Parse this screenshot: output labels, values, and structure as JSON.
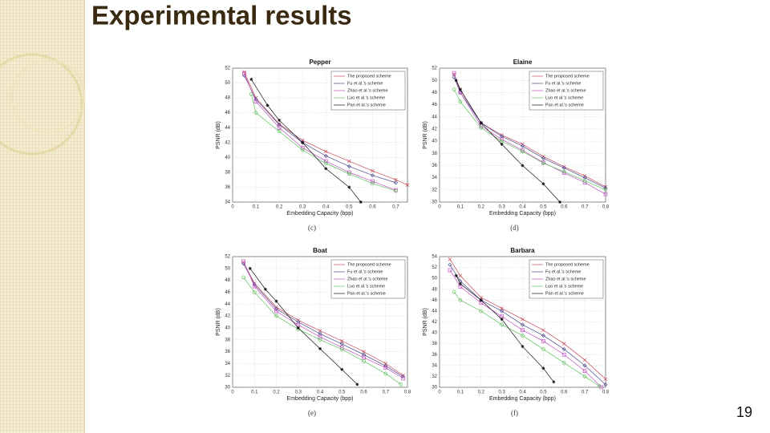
{
  "slide_title": "Experimental results",
  "page_number": "19",
  "chart_data": [
    {
      "type": "line",
      "title": "Pepper",
      "caption": "(c)",
      "xlabel": "Embedding Capacity (bpp)",
      "ylabel": "PSNR (dB)",
      "xlim": [
        0,
        0.75
      ],
      "xticks": [
        0,
        0.1,
        0.2,
        0.3,
        0.4,
        0.5,
        0.6,
        0.7
      ],
      "ylim": [
        34,
        52
      ],
      "yticks": [
        34,
        36,
        38,
        40,
        42,
        44,
        46,
        48,
        50,
        52
      ],
      "grid": true,
      "legend": "upper right",
      "series": [
        {
          "name": "The proposed scheme",
          "color": "#c84a5a",
          "marker": "x",
          "x": [
            0.05,
            0.1,
            0.2,
            0.3,
            0.4,
            0.5,
            0.6,
            0.7,
            0.75
          ],
          "values": [
            51.5,
            48,
            44.5,
            42.3,
            40.8,
            39.5,
            38.2,
            37,
            36.3
          ]
        },
        {
          "name": "Fu et al.'s scheme",
          "color": "#4a4a8c",
          "marker": "diamond",
          "x": [
            0.05,
            0.1,
            0.2,
            0.3,
            0.4,
            0.5,
            0.6,
            0.7
          ],
          "values": [
            51,
            47.8,
            44.4,
            42,
            40.2,
            38.8,
            37.6,
            36.6
          ]
        },
        {
          "name": "Zhao et al.'s scheme",
          "color": "#c050c0",
          "marker": "square",
          "x": [
            0.05,
            0.1,
            0.2,
            0.3,
            0.4,
            0.5,
            0.6,
            0.7
          ],
          "values": [
            51.3,
            47.5,
            44,
            41.3,
            39.5,
            38,
            36.8,
            35.6
          ]
        },
        {
          "name": "Luo et al.'s scheme",
          "color": "#60c060",
          "marker": "circle",
          "x": [
            0.08,
            0.1,
            0.2,
            0.3,
            0.4,
            0.5,
            0.6,
            0.7
          ],
          "values": [
            48.5,
            46,
            43.5,
            41,
            39.2,
            37.8,
            36.5,
            35.5
          ]
        },
        {
          "name": "Pan et al.'s scheme",
          "color": "#111111",
          "marker": "star",
          "x": [
            0.08,
            0.15,
            0.2,
            0.3,
            0.4,
            0.5,
            0.55
          ],
          "values": [
            50.5,
            47,
            45,
            42,
            38.5,
            36,
            34
          ]
        }
      ]
    },
    {
      "type": "line",
      "title": "Elaine",
      "caption": "(d)",
      "xlabel": "Embedding Capacity (bpp)",
      "ylabel": "PSNR (dB)",
      "xlim": [
        0,
        0.8
      ],
      "xticks": [
        0,
        0.1,
        0.2,
        0.3,
        0.4,
        0.5,
        0.6,
        0.7,
        0.8
      ],
      "ylim": [
        30,
        52
      ],
      "yticks": [
        30,
        32,
        34,
        36,
        38,
        40,
        42,
        44,
        46,
        48,
        50,
        52
      ],
      "grid": true,
      "legend": "upper right",
      "series": [
        {
          "name": "The proposed scheme",
          "color": "#c84a5a",
          "marker": "x",
          "x": [
            0.07,
            0.1,
            0.2,
            0.3,
            0.4,
            0.5,
            0.6,
            0.7,
            0.8
          ],
          "values": [
            51,
            48.5,
            43,
            41,
            39.5,
            37.5,
            35.8,
            34.3,
            32.5
          ]
        },
        {
          "name": "Fu et al.'s scheme",
          "color": "#4a4a8c",
          "marker": "diamond",
          "x": [
            0.07,
            0.1,
            0.2,
            0.3,
            0.4,
            0.5,
            0.6,
            0.7,
            0.8
          ],
          "values": [
            50.5,
            48,
            43,
            40.8,
            39.2,
            37.2,
            35.6,
            34,
            32.3
          ]
        },
        {
          "name": "Zhao et al.'s scheme",
          "color": "#c050c0",
          "marker": "square",
          "x": [
            0.07,
            0.1,
            0.2,
            0.3,
            0.4,
            0.5,
            0.6,
            0.7,
            0.8
          ],
          "values": [
            51.2,
            48,
            42.5,
            40.3,
            38.5,
            36.5,
            34.8,
            33.2,
            31.3
          ]
        },
        {
          "name": "Luo et al.'s scheme",
          "color": "#60c060",
          "marker": "circle",
          "x": [
            0.07,
            0.1,
            0.2,
            0.3,
            0.4,
            0.5,
            0.6,
            0.7,
            0.8
          ],
          "values": [
            48.5,
            46.5,
            42.2,
            40,
            38.3,
            36.4,
            35,
            33.5,
            32
          ]
        },
        {
          "name": "Pan et al.'s scheme",
          "color": "#111111",
          "marker": "star",
          "x": [
            0.08,
            0.1,
            0.2,
            0.3,
            0.4,
            0.5,
            0.58
          ],
          "values": [
            50,
            48.5,
            43,
            39.5,
            36,
            33,
            30
          ]
        }
      ]
    },
    {
      "type": "line",
      "title": "Boat",
      "caption": "(e)",
      "xlabel": "Embedding Capacity (bpp)",
      "ylabel": "PSNR (dB)",
      "xlim": [
        0,
        0.8
      ],
      "xticks": [
        0,
        0.1,
        0.2,
        0.3,
        0.4,
        0.5,
        0.6,
        0.7,
        0.8
      ],
      "ylim": [
        30,
        52
      ],
      "yticks": [
        30,
        32,
        34,
        36,
        38,
        40,
        42,
        44,
        46,
        48,
        50,
        52
      ],
      "grid": true,
      "legend": "upper right",
      "series": [
        {
          "name": "The proposed scheme",
          "color": "#c84a5a",
          "marker": "x",
          "x": [
            0.05,
            0.1,
            0.2,
            0.3,
            0.4,
            0.5,
            0.6,
            0.7,
            0.78
          ],
          "values": [
            51,
            47.5,
            43.5,
            41.3,
            39.5,
            37.8,
            36,
            34,
            32
          ]
        },
        {
          "name": "Fu et al.'s scheme",
          "color": "#4a4a8c",
          "marker": "diamond",
          "x": [
            0.05,
            0.1,
            0.2,
            0.3,
            0.4,
            0.5,
            0.6,
            0.7,
            0.78
          ],
          "values": [
            50.8,
            47.3,
            43.2,
            41,
            39,
            37.3,
            35.5,
            33.6,
            31.8
          ]
        },
        {
          "name": "Zhao et al.'s scheme",
          "color": "#c050c0",
          "marker": "square",
          "x": [
            0.05,
            0.1,
            0.2,
            0.3,
            0.4,
            0.5,
            0.6,
            0.7,
            0.78
          ],
          "values": [
            51.2,
            47,
            42.8,
            40.5,
            38.5,
            36.7,
            35,
            33.3,
            31.5
          ]
        },
        {
          "name": "Luo et al.'s scheme",
          "color": "#60c060",
          "marker": "circle",
          "x": [
            0.05,
            0.1,
            0.2,
            0.3,
            0.4,
            0.5,
            0.6,
            0.7,
            0.77
          ],
          "values": [
            48.5,
            46,
            42,
            39.8,
            38,
            36.4,
            34.4,
            32.3,
            30.5
          ]
        },
        {
          "name": "Pan et al.'s scheme",
          "color": "#111111",
          "marker": "star",
          "x": [
            0.08,
            0.15,
            0.2,
            0.3,
            0.4,
            0.5,
            0.57
          ],
          "values": [
            50,
            46.5,
            44.5,
            40,
            36.5,
            33,
            30.5
          ]
        }
      ]
    },
    {
      "type": "line",
      "title": "Barbara",
      "caption": "(f)",
      "xlabel": "Embedding Capacity (bpp)",
      "ylabel": "PSNR (dB)",
      "xlim": [
        0,
        0.8
      ],
      "xticks": [
        0,
        0.1,
        0.2,
        0.3,
        0.4,
        0.5,
        0.6,
        0.7,
        0.8
      ],
      "ylim": [
        30,
        54
      ],
      "yticks": [
        30,
        32,
        34,
        36,
        38,
        40,
        42,
        44,
        46,
        48,
        50,
        52,
        54
      ],
      "grid": true,
      "legend": "upper right",
      "series": [
        {
          "name": "The proposed scheme",
          "color": "#c84a5a",
          "marker": "x",
          "x": [
            0.05,
            0.1,
            0.2,
            0.3,
            0.4,
            0.5,
            0.6,
            0.7,
            0.8
          ],
          "values": [
            53.5,
            50.5,
            46.5,
            44.5,
            42.5,
            40.5,
            38,
            35,
            31.5
          ]
        },
        {
          "name": "Fu et al.'s scheme",
          "color": "#4a4a8c",
          "marker": "diamond",
          "x": [
            0.05,
            0.1,
            0.2,
            0.3,
            0.4,
            0.5,
            0.6,
            0.7,
            0.8
          ],
          "values": [
            52.5,
            49.5,
            46,
            44,
            41.5,
            39.5,
            37,
            34,
            30.5
          ]
        },
        {
          "name": "Zhao et al.'s scheme",
          "color": "#c050c0",
          "marker": "square",
          "x": [
            0.05,
            0.1,
            0.2,
            0.3,
            0.4,
            0.5,
            0.6,
            0.7,
            0.78
          ],
          "values": [
            51.5,
            48.5,
            45.5,
            43,
            40.5,
            38.5,
            36,
            33,
            30
          ]
        },
        {
          "name": "Luo et al.'s scheme",
          "color": "#60c060",
          "marker": "circle",
          "x": [
            0.07,
            0.1,
            0.2,
            0.3,
            0.4,
            0.5,
            0.6,
            0.7,
            0.77
          ],
          "values": [
            47.5,
            46,
            44,
            41.5,
            39.5,
            37,
            34.5,
            32,
            30.2
          ]
        },
        {
          "name": "Pan et al.'s scheme",
          "color": "#111111",
          "marker": "star",
          "x": [
            0.08,
            0.1,
            0.2,
            0.3,
            0.4,
            0.5,
            0.55
          ],
          "values": [
            50.5,
            49,
            46,
            42.5,
            37.5,
            33.5,
            31
          ]
        }
      ]
    }
  ]
}
